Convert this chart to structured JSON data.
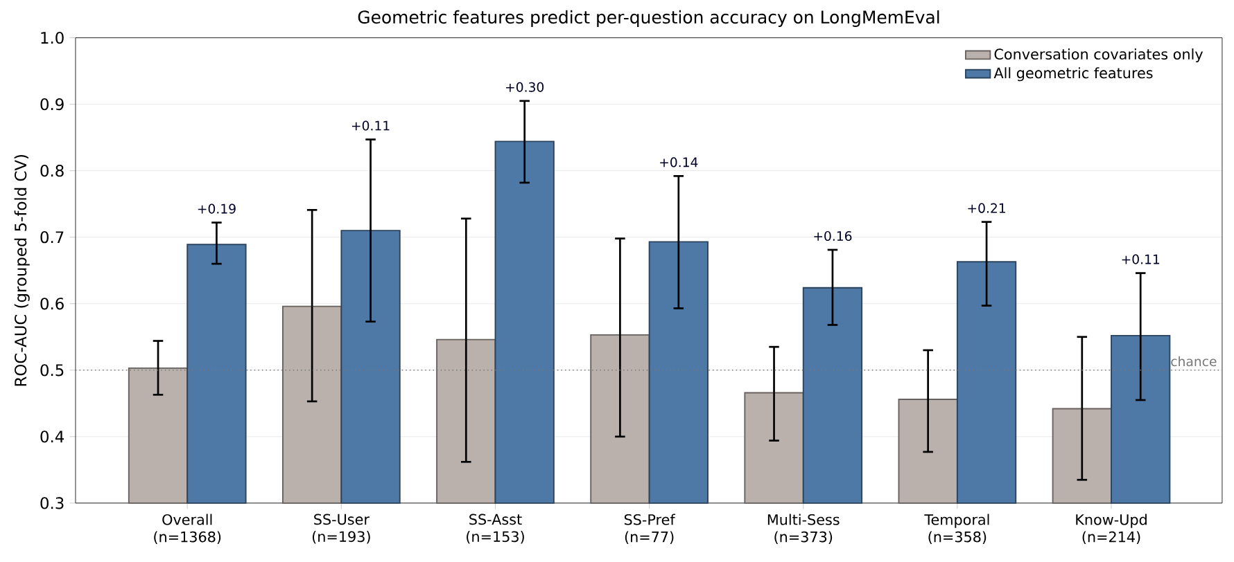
{
  "chart_data": {
    "type": "bar",
    "title": "Geometric features predict per-question accuracy on LongMemEval",
    "ylabel": "ROC-AUC (grouped 5-fold CV)",
    "categories": [
      "Overall (n=1368)",
      "SS-User (n=193)",
      "SS-Asst (n=153)",
      "SS-Pref (n=77)",
      "Multi-Sess (n=373)",
      "Temporal (n=358)",
      "Know-Upd (n=214)"
    ],
    "series": [
      {
        "name": "Conversation covariates only",
        "color": "#bab0ac",
        "values": [
          0.503,
          0.596,
          0.546,
          0.553,
          0.466,
          0.456,
          0.442
        ],
        "errors": [
          [
            0.463,
            0.544
          ],
          [
            0.453,
            0.741
          ],
          [
            0.362,
            0.728
          ],
          [
            0.4,
            0.698
          ],
          [
            0.394,
            0.535
          ],
          [
            0.377,
            0.53
          ],
          [
            0.335,
            0.55
          ]
        ]
      },
      {
        "name": "All geometric features",
        "color": "#4e79a7",
        "values": [
          0.689,
          0.71,
          0.844,
          0.693,
          0.624,
          0.663,
          0.552
        ],
        "errors": [
          [
            0.66,
            0.722
          ],
          [
            0.573,
            0.847
          ],
          [
            0.782,
            0.905
          ],
          [
            0.593,
            0.792
          ],
          [
            0.568,
            0.681
          ],
          [
            0.597,
            0.723
          ],
          [
            0.455,
            0.646
          ]
        ]
      }
    ],
    "annotations": [
      "+0.19",
      "+0.11",
      "+0.30",
      "+0.14",
      "+0.16",
      "+0.21",
      "+0.11"
    ],
    "ref_lines": [
      {
        "axis": "y",
        "value": 0.5,
        "label": "chance",
        "color": "#777777",
        "line_style": "dotted"
      }
    ],
    "ylim": [
      0.3,
      1.0
    ],
    "yticks": [
      {
        "value": 0.3,
        "label": "0.3"
      },
      {
        "value": 0.4,
        "label": "0.4"
      },
      {
        "value": 0.5,
        "label": "0.5"
      },
      {
        "value": 0.6,
        "label": "0.6"
      },
      {
        "value": 0.7,
        "label": "0.7"
      },
      {
        "value": 0.8,
        "label": "0.8"
      },
      {
        "value": 0.9,
        "label": "0.9"
      },
      {
        "value": 1.0,
        "label": "1.0"
      }
    ],
    "grid": "y",
    "legend": "top right"
  }
}
